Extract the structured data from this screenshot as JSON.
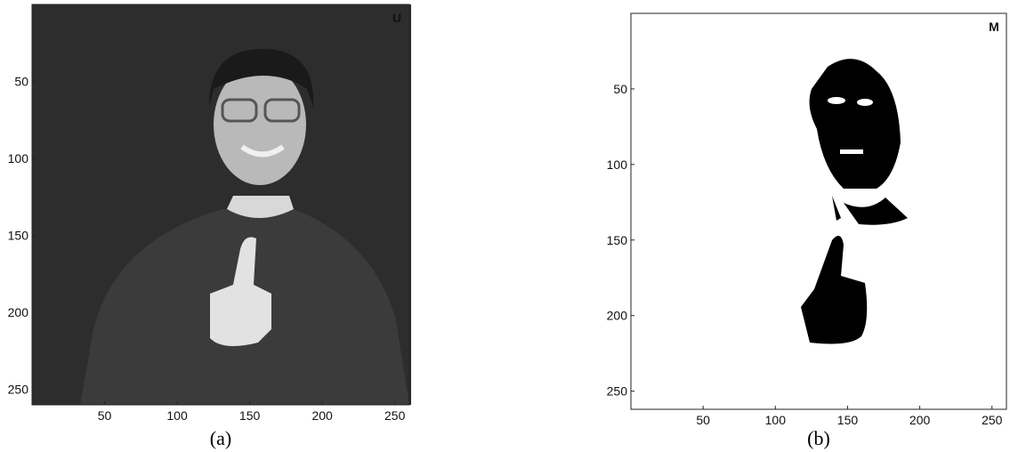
{
  "figure": {
    "panels": [
      {
        "caption": "(a)",
        "corner_label": "U",
        "xlim": [
          0,
          260
        ],
        "ylim": [
          0,
          260
        ],
        "xticks": [
          50,
          100,
          150,
          200,
          250
        ],
        "yticks": [
          50,
          100,
          150,
          200,
          250
        ]
      },
      {
        "caption": "(b)",
        "corner_label": "M",
        "xlim": [
          0,
          260
        ],
        "ylim": [
          0,
          262
        ],
        "xticks": [
          50,
          100,
          150,
          200,
          250
        ],
        "yticks": [
          50,
          100,
          150,
          200,
          250
        ]
      }
    ]
  }
}
